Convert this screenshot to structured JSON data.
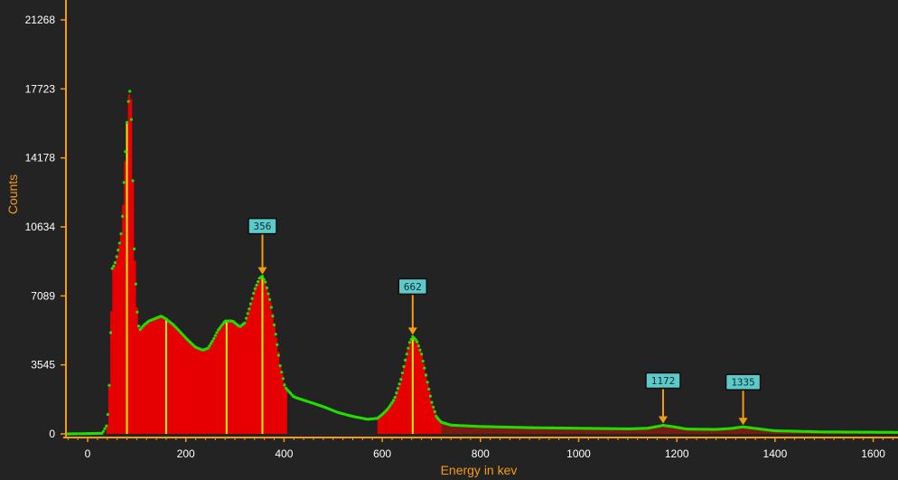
{
  "chart_data": {
    "type": "bar",
    "xlabel": "Energy in kev",
    "ylabel": "Counts",
    "xlim": [
      -40,
      1650
    ],
    "ylim": [
      0,
      21268
    ],
    "x_ticks": [
      0,
      200,
      400,
      600,
      800,
      1000,
      1200,
      1400,
      1600
    ],
    "y_ticks": [
      0,
      3545,
      7089,
      10634,
      14178,
      17723,
      21268
    ],
    "grid": false,
    "colors": {
      "background": "#232323",
      "axis": "#f39c12",
      "bars": "#e60000",
      "curve": "#22dd00",
      "lines": "#f0f000",
      "marker": "#f39c12",
      "label_fill": "#5ec9c9"
    },
    "curve": [
      [
        -40,
        0
      ],
      [
        30,
        30
      ],
      [
        40,
        500
      ],
      [
        45,
        3000
      ],
      [
        50,
        8500
      ],
      [
        55,
        8700
      ],
      [
        60,
        9200
      ],
      [
        65,
        9800
      ],
      [
        70,
        10600
      ],
      [
        75,
        13500
      ],
      [
        80,
        16000
      ],
      [
        85,
        17800
      ],
      [
        88,
        17200
      ],
      [
        92,
        13000
      ],
      [
        95,
        9500
      ],
      [
        100,
        6500
      ],
      [
        105,
        5300
      ],
      [
        115,
        5600
      ],
      [
        125,
        5800
      ],
      [
        140,
        5950
      ],
      [
        150,
        6050
      ],
      [
        160,
        5900
      ],
      [
        175,
        5600
      ],
      [
        190,
        5200
      ],
      [
        205,
        4800
      ],
      [
        220,
        4450
      ],
      [
        235,
        4300
      ],
      [
        245,
        4400
      ],
      [
        255,
        4800
      ],
      [
        265,
        5300
      ],
      [
        280,
        5800
      ],
      [
        295,
        5800
      ],
      [
        310,
        5500
      ],
      [
        320,
        5700
      ],
      [
        330,
        6500
      ],
      [
        340,
        7400
      ],
      [
        350,
        8000
      ],
      [
        356,
        8100
      ],
      [
        362,
        7800
      ],
      [
        372,
        6800
      ],
      [
        382,
        5300
      ],
      [
        392,
        3500
      ],
      [
        402,
        2400
      ],
      [
        420,
        1900
      ],
      [
        450,
        1650
      ],
      [
        480,
        1400
      ],
      [
        510,
        1100
      ],
      [
        540,
        900
      ],
      [
        570,
        750
      ],
      [
        590,
        800
      ],
      [
        600,
        1000
      ],
      [
        612,
        1300
      ],
      [
        625,
        1800
      ],
      [
        638,
        2800
      ],
      [
        648,
        3900
      ],
      [
        656,
        4700
      ],
      [
        662,
        5000
      ],
      [
        670,
        4800
      ],
      [
        680,
        4100
      ],
      [
        690,
        2900
      ],
      [
        700,
        1700
      ],
      [
        710,
        900
      ],
      [
        720,
        600
      ],
      [
        740,
        450
      ],
      [
        800,
        380
      ],
      [
        900,
        320
      ],
      [
        1000,
        290
      ],
      [
        1100,
        260
      ],
      [
        1140,
        290
      ],
      [
        1160,
        380
      ],
      [
        1172,
        440
      ],
      [
        1190,
        380
      ],
      [
        1220,
        250
      ],
      [
        1280,
        230
      ],
      [
        1310,
        280
      ],
      [
        1335,
        360
      ],
      [
        1360,
        280
      ],
      [
        1400,
        160
      ],
      [
        1500,
        100
      ],
      [
        1650,
        80
      ]
    ],
    "bar_regions": [
      [
        40,
        405
      ],
      [
        592,
        720
      ]
    ],
    "tail_fill_to": 1650,
    "line_markers": [
      80,
      160,
      283,
      356,
      662
    ],
    "peak_markers": [
      {
        "label": "356",
        "x": 356,
        "y": 8100
      },
      {
        "label": "662",
        "x": 662,
        "y": 5000
      },
      {
        "label": "1172",
        "x": 1172,
        "y": 440
      },
      {
        "label": "1335",
        "x": 1335,
        "y": 360
      }
    ]
  }
}
